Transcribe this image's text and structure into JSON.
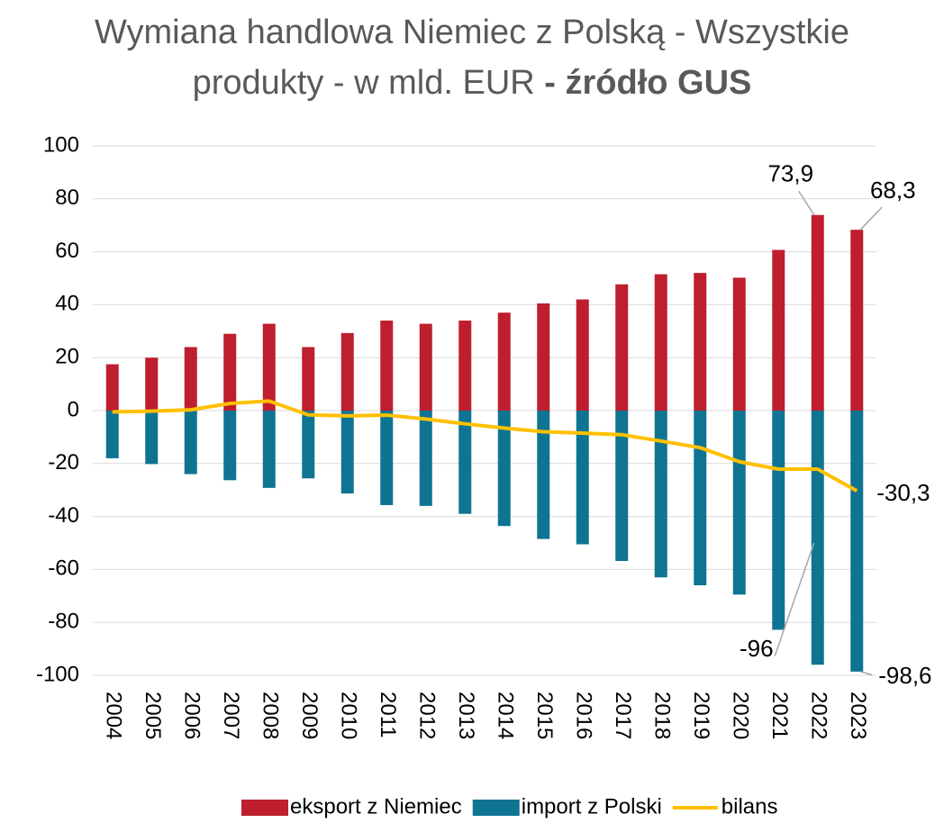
{
  "chart_data": {
    "type": "bar_line",
    "title": "Wymiana handlowa Niemiec z Polską - Wszystkie produkty - w mld. EUR",
    "title_emphasis": "- źródło GUS",
    "categories": [
      "2004",
      "2005",
      "2006",
      "2007",
      "2008",
      "2009",
      "2010",
      "2011",
      "2012",
      "2013",
      "2014",
      "2015",
      "2016",
      "2017",
      "2018",
      "2019",
      "2020",
      "2021",
      "2022",
      "2023"
    ],
    "series": [
      {
        "name": "eksport z Niemiec",
        "type": "bar",
        "color": "#be1e2d",
        "values": [
          17.5,
          20,
          24,
          29,
          32.8,
          24,
          29.3,
          34,
          32.8,
          34,
          37,
          40.5,
          42,
          47.7,
          51.5,
          52,
          50.2,
          60.7,
          73.9,
          68.3
        ],
        "value_labels": [
          null,
          null,
          null,
          null,
          null,
          null,
          null,
          null,
          null,
          null,
          null,
          null,
          null,
          null,
          null,
          null,
          null,
          null,
          "73,9",
          "68,3"
        ]
      },
      {
        "name": "import z Polski",
        "type": "bar",
        "color": "#0f7491",
        "values": [
          -18,
          -20.2,
          -24,
          -26.3,
          -29.2,
          -25.6,
          -31.3,
          -35.7,
          -36,
          -39,
          -43.6,
          -48.5,
          -50.5,
          -56.8,
          -63,
          -66,
          -69.5,
          -82.8,
          -96,
          -98.6
        ],
        "value_labels": [
          null,
          null,
          null,
          null,
          null,
          null,
          null,
          null,
          null,
          null,
          null,
          null,
          null,
          null,
          null,
          null,
          null,
          null,
          "-96",
          "-98,6"
        ]
      },
      {
        "name": "bilans",
        "type": "line",
        "color": "#ffc000",
        "values": [
          -0.5,
          -0.2,
          0.3,
          2.7,
          3.6,
          -1.6,
          -2,
          -1.7,
          -3.2,
          -5,
          -6.6,
          -8,
          -8.5,
          -9.1,
          -11.5,
          -14,
          -19.3,
          -22.1,
          -22.1,
          -30.3
        ],
        "value_labels": [
          null,
          null,
          null,
          null,
          null,
          null,
          null,
          null,
          null,
          null,
          null,
          null,
          null,
          null,
          null,
          null,
          null,
          null,
          null,
          "-30,3"
        ]
      }
    ],
    "ylim": [
      -100,
      100
    ],
    "yticks": [
      -100,
      -80,
      -60,
      -40,
      -20,
      0,
      20,
      40,
      60,
      80,
      100
    ],
    "grid": true,
    "legend": "bottom"
  }
}
